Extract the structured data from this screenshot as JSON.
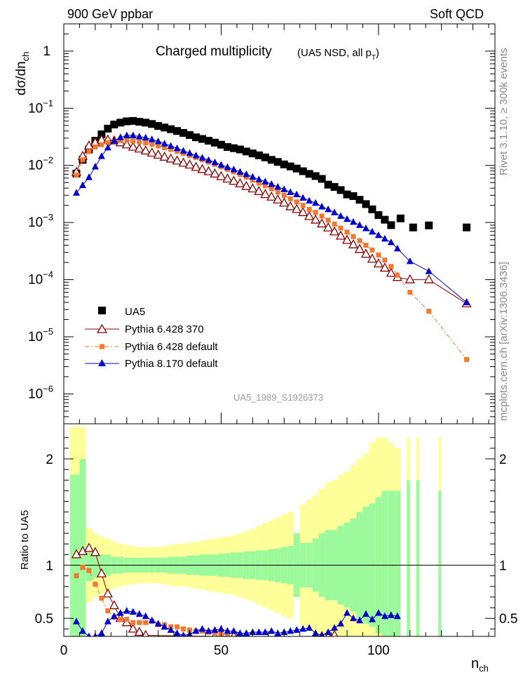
{
  "header": {
    "left": "900 GeV ppbar",
    "right": "Soft QCD"
  },
  "side_labels": {
    "top": "Rivet 3.1.10, ≥ 300k events",
    "bottom": "mcplots.cern.ch [arXiv:1306.3436]"
  },
  "chart_data": [
    {
      "type": "scatter",
      "title": "Charged multiplicity",
      "subtitle": "(UA5 NSD, all p",
      "subtitle_sub": "T",
      "subtitle_end": ")",
      "analysis": "UA5_1989_S1926373",
      "xlabel": "n",
      "xlabel_sub": "ch",
      "ylabel": "dσ/dn",
      "ylabel_sub": "ch",
      "yscale": "log",
      "xlim": [
        0,
        137
      ],
      "ylim": [
        3e-07,
        3
      ],
      "yticks": [
        {
          "value": 1e-06,
          "base": "10",
          "exp": "−6"
        },
        {
          "value": 1e-05,
          "base": "10",
          "exp": "−5"
        },
        {
          "value": 0.0001,
          "base": "10",
          "exp": "−4"
        },
        {
          "value": 0.001,
          "base": "10",
          "exp": "−3"
        },
        {
          "value": 0.01,
          "base": "10",
          "exp": "−2"
        },
        {
          "value": 0.1,
          "base": "10",
          "exp": "−1"
        },
        {
          "value": 1,
          "base": "1",
          "exp": ""
        }
      ],
      "series": [
        {
          "name": "UA5",
          "color": "#000000",
          "marker": "square",
          "x": [
            4,
            6,
            8,
            10,
            12,
            14,
            16,
            18,
            20,
            22,
            24,
            26,
            28,
            30,
            32,
            34,
            36,
            38,
            40,
            42,
            44,
            46,
            48,
            50,
            52,
            54,
            56,
            58,
            60,
            62,
            64,
            66,
            68,
            70,
            72,
            74,
            76,
            78,
            80,
            82,
            84,
            86,
            88,
            90,
            92,
            94,
            96,
            98,
            100,
            102,
            104,
            107,
            111,
            116,
            128
          ],
          "y": [
            0.0072,
            0.0125,
            0.019,
            0.027,
            0.035,
            0.044,
            0.052,
            0.056,
            0.059,
            0.06,
            0.058,
            0.056,
            0.053,
            0.049,
            0.046,
            0.043,
            0.04,
            0.037,
            0.034,
            0.031,
            0.029,
            0.027,
            0.025,
            0.023,
            0.021,
            0.02,
            0.019,
            0.0175,
            0.0162,
            0.015,
            0.0138,
            0.0125,
            0.0115,
            0.0104,
            0.0096,
            0.0088,
            0.0079,
            0.0071,
            0.0065,
            0.0058,
            0.0046,
            0.0042,
            0.0037,
            0.0031,
            0.0029,
            0.0025,
            0.0021,
            0.0017,
            0.00135,
            0.00112,
            0.0009,
            0.00118,
            0.00082,
            0.00089,
            0.00082
          ]
        },
        {
          "name": "Pythia 6.428 370",
          "color": "#8b0000",
          "marker": "triangle-open",
          "x": [
            4,
            6,
            8,
            10,
            12,
            14,
            16,
            18,
            20,
            22,
            24,
            26,
            28,
            30,
            32,
            34,
            36,
            38,
            40,
            42,
            44,
            46,
            48,
            50,
            52,
            54,
            56,
            58,
            60,
            62,
            64,
            66,
            68,
            70,
            72,
            74,
            76,
            78,
            80,
            82,
            84,
            86,
            88,
            90,
            92,
            94,
            96,
            98,
            100,
            102,
            104,
            106,
            110,
            116,
            128
          ],
          "y": [
            0.0076,
            0.0145,
            0.022,
            0.025,
            0.028,
            0.028,
            0.027,
            0.025,
            0.023,
            0.021,
            0.0195,
            0.018,
            0.0165,
            0.0152,
            0.014,
            0.013,
            0.012,
            0.011,
            0.0102,
            0.0093,
            0.0085,
            0.0078,
            0.0071,
            0.0064,
            0.0058,
            0.0053,
            0.0048,
            0.0043,
            0.0039,
            0.0035,
            0.0031,
            0.0028,
            0.0025,
            0.0022,
            0.0019,
            0.0017,
            0.0015,
            0.00128,
            0.00111,
            0.00095,
            0.00081,
            0.00069,
            0.00058,
            0.00049,
            0.00041,
            0.00034,
            0.00028,
            0.00023,
            0.00019,
            0.00016,
            0.00013,
            0.00011,
            0.0001,
            0.0001,
            3.8e-05
          ]
        },
        {
          "name": "Pythia 6.428 default",
          "color": "#f07830",
          "marker": "square-small",
          "x": [
            4,
            6,
            8,
            10,
            12,
            14,
            16,
            18,
            20,
            22,
            24,
            26,
            28,
            30,
            32,
            34,
            36,
            38,
            40,
            42,
            44,
            46,
            48,
            50,
            52,
            54,
            56,
            58,
            60,
            62,
            64,
            66,
            68,
            70,
            72,
            74,
            76,
            78,
            80,
            82,
            84,
            86,
            88,
            90,
            92,
            94,
            96,
            98,
            100,
            102,
            104,
            106,
            110,
            116,
            128
          ],
          "y": [
            0.0067,
            0.0125,
            0.0175,
            0.021,
            0.023,
            0.025,
            0.0265,
            0.0272,
            0.0275,
            0.0268,
            0.0258,
            0.0247,
            0.0233,
            0.0219,
            0.0204,
            0.019,
            0.0176,
            0.0162,
            0.0149,
            0.0137,
            0.0125,
            0.0114,
            0.0104,
            0.0094,
            0.0085,
            0.0077,
            0.0069,
            0.0062,
            0.0055,
            0.0049,
            0.0044,
            0.0039,
            0.0034,
            0.003,
            0.0026,
            0.0023,
            0.002,
            0.0017,
            0.0015,
            0.0013,
            0.0011,
            0.00094,
            0.0008,
            0.00068,
            0.00057,
            0.00048,
            0.0004,
            0.00033,
            0.00027,
            0.00022,
            0.00017,
            0.00012,
            6e-05,
            2.8e-05,
            4e-06
          ]
        },
        {
          "name": "Pythia 8.170 default",
          "color": "#0000cc",
          "marker": "triangle",
          "x": [
            4,
            6,
            8,
            10,
            12,
            14,
            16,
            18,
            20,
            22,
            24,
            26,
            28,
            30,
            32,
            34,
            36,
            38,
            40,
            42,
            44,
            46,
            48,
            50,
            52,
            54,
            56,
            58,
            60,
            62,
            64,
            66,
            68,
            70,
            72,
            74,
            76,
            78,
            80,
            82,
            84,
            86,
            88,
            90,
            92,
            94,
            96,
            98,
            100,
            102,
            104,
            106,
            110,
            116,
            128
          ],
          "y": [
            0.0033,
            0.0045,
            0.0062,
            0.0095,
            0.0145,
            0.0205,
            0.027,
            0.031,
            0.0335,
            0.0335,
            0.032,
            0.0305,
            0.0285,
            0.0263,
            0.024,
            0.0219,
            0.0199,
            0.018,
            0.0164,
            0.0149,
            0.0136,
            0.0124,
            0.0113,
            0.0102,
            0.0093,
            0.0085,
            0.0077,
            0.007,
            0.0063,
            0.0057,
            0.0052,
            0.0047,
            0.0042,
            0.0038,
            0.0034,
            0.0031,
            0.0027,
            0.0024,
            0.0022,
            0.0019,
            0.0017,
            0.0015,
            0.0013,
            0.00115,
            0.00102,
            0.0009,
            0.00079,
            0.00069,
            0.0006,
            0.00052,
            0.00045,
            0.00035,
            0.00021,
            0.00014,
            4e-05
          ]
        }
      ]
    },
    {
      "type": "scatter",
      "ylabel": "Ratio to UA5",
      "xlim": [
        0,
        137
      ],
      "ylim": [
        0.33,
        2.33
      ],
      "xticks": [
        0,
        50,
        100
      ],
      "yticks": [
        0.5,
        1,
        2
      ],
      "reference_line": 1,
      "bands": {
        "inner_color": "#9cfa9c",
        "outer_color": "#ffff99",
        "edges": [
          2,
          5,
          7,
          9,
          11,
          13,
          15,
          17,
          19,
          21,
          23,
          25,
          27,
          29,
          31,
          33,
          35,
          37,
          39,
          41,
          43,
          45,
          47,
          49,
          51,
          53,
          55,
          57,
          59,
          61,
          63,
          65,
          67,
          69,
          71,
          73,
          75,
          77,
          79,
          81,
          83,
          85,
          87,
          89,
          91,
          93,
          95,
          97,
          99,
          101,
          103,
          105,
          107,
          109,
          110,
          112,
          113,
          119,
          120,
          137
        ],
        "inner": [
          0.85,
          1.0,
          0.15,
          0.12,
          0.1,
          0.1,
          0.08,
          0.08,
          0.07,
          0.07,
          0.07,
          0.07,
          0.07,
          0.07,
          0.07,
          0.08,
          0.08,
          0.08,
          0.09,
          0.09,
          0.1,
          0.1,
          0.1,
          0.11,
          0.11,
          0.12,
          0.12,
          0.13,
          0.13,
          0.14,
          0.14,
          0.15,
          0.16,
          0.17,
          0.18,
          0.3,
          0.21,
          0.21,
          0.25,
          0.3,
          0.33,
          0.33,
          0.37,
          0.4,
          0.44,
          0.5,
          0.55,
          0.58,
          0.64,
          0.7,
          0.7,
          0.7,
          0,
          0.8,
          0,
          0.8,
          0,
          0.7,
          0
        ],
        "outer": [
          1.3,
          1.3,
          0.35,
          0.3,
          0.27,
          0.25,
          0.22,
          0.2,
          0.19,
          0.18,
          0.17,
          0.17,
          0.17,
          0.17,
          0.18,
          0.19,
          0.2,
          0.2,
          0.21,
          0.22,
          0.23,
          0.24,
          0.25,
          0.26,
          0.27,
          0.28,
          0.3,
          0.32,
          0.34,
          0.37,
          0.4,
          0.42,
          0.45,
          0.48,
          0.5,
          0.3,
          0.57,
          0.62,
          0.66,
          0.72,
          0.78,
          0.8,
          0.85,
          0.88,
          0.94,
          1.0,
          1.05,
          1.15,
          1.2,
          1.2,
          1.15,
          1.1,
          0,
          1.2,
          0,
          1.2,
          0,
          1.2,
          0
        ]
      },
      "series": [
        {
          "name": "Pythia 6.428 370",
          "color": "#8b0000",
          "marker": "triangle-open",
          "x": [
            4,
            6,
            8,
            10,
            12,
            14,
            16,
            18,
            20,
            22,
            24,
            26,
            48,
            50,
            52,
            54,
            56,
            82,
            84,
            86
          ],
          "y": [
            1.1,
            1.13,
            1.16,
            1.12,
            0.92,
            0.73,
            0.62,
            0.5,
            0.46,
            0.4,
            0.37,
            0.34,
            0.33,
            0.33,
            0.33,
            0.33,
            0.33,
            0.33,
            0.33,
            0.34
          ]
        },
        {
          "name": "Pythia 6.428 default",
          "color": "#f07830",
          "marker": "square-small",
          "x": [
            4,
            6,
            8,
            10,
            12,
            14,
            16,
            18,
            20,
            22,
            24,
            26,
            28,
            30,
            32,
            34,
            36,
            38,
            40,
            42,
            44,
            46,
            48,
            50,
            52
          ],
          "y": [
            0.9,
            0.98,
            0.95,
            0.82,
            0.69,
            0.57,
            0.51,
            0.49,
            0.49,
            0.46,
            0.46,
            0.46,
            0.47,
            0.44,
            0.44,
            0.42,
            0.42,
            0.4,
            0.39,
            0.38,
            0.38,
            0.37,
            0.36,
            0.35,
            0.34
          ]
        },
        {
          "name": "Pythia 8.170 default",
          "color": "#0000cc",
          "marker": "triangle",
          "x": [
            4,
            6,
            8,
            10,
            12,
            14,
            16,
            18,
            20,
            22,
            24,
            26,
            28,
            30,
            32,
            34,
            36,
            38,
            40,
            42,
            44,
            46,
            48,
            50,
            52,
            54,
            56,
            58,
            60,
            62,
            64,
            66,
            68,
            70,
            72,
            74,
            76,
            78,
            80,
            82,
            84,
            86,
            88,
            90,
            92,
            94,
            96,
            98,
            100,
            102,
            104,
            106
          ],
          "y": [
            0.47,
            0.38,
            0.33,
            0.33,
            0.36,
            0.47,
            0.52,
            0.55,
            0.57,
            0.56,
            0.54,
            0.52,
            0.48,
            0.45,
            0.42,
            0.39,
            0.36,
            0.34,
            0.35,
            0.38,
            0.4,
            0.38,
            0.39,
            0.4,
            0.38,
            0.38,
            0.36,
            0.36,
            0.37,
            0.37,
            0.37,
            0.38,
            0.36,
            0.37,
            0.38,
            0.39,
            0.4,
            0.41,
            0.36,
            0.34,
            0.37,
            0.41,
            0.45,
            0.55,
            0.5,
            0.48,
            0.54,
            0.49,
            0.55,
            0.52,
            0.53,
            0.52
          ]
        }
      ]
    }
  ],
  "axis_tick_labels": {
    "ratio_right": [
      "0.5",
      "1",
      "2"
    ],
    "ratio_left": [
      "0.5",
      "1",
      "2"
    ],
    "x": [
      "0",
      "50",
      "100"
    ]
  }
}
